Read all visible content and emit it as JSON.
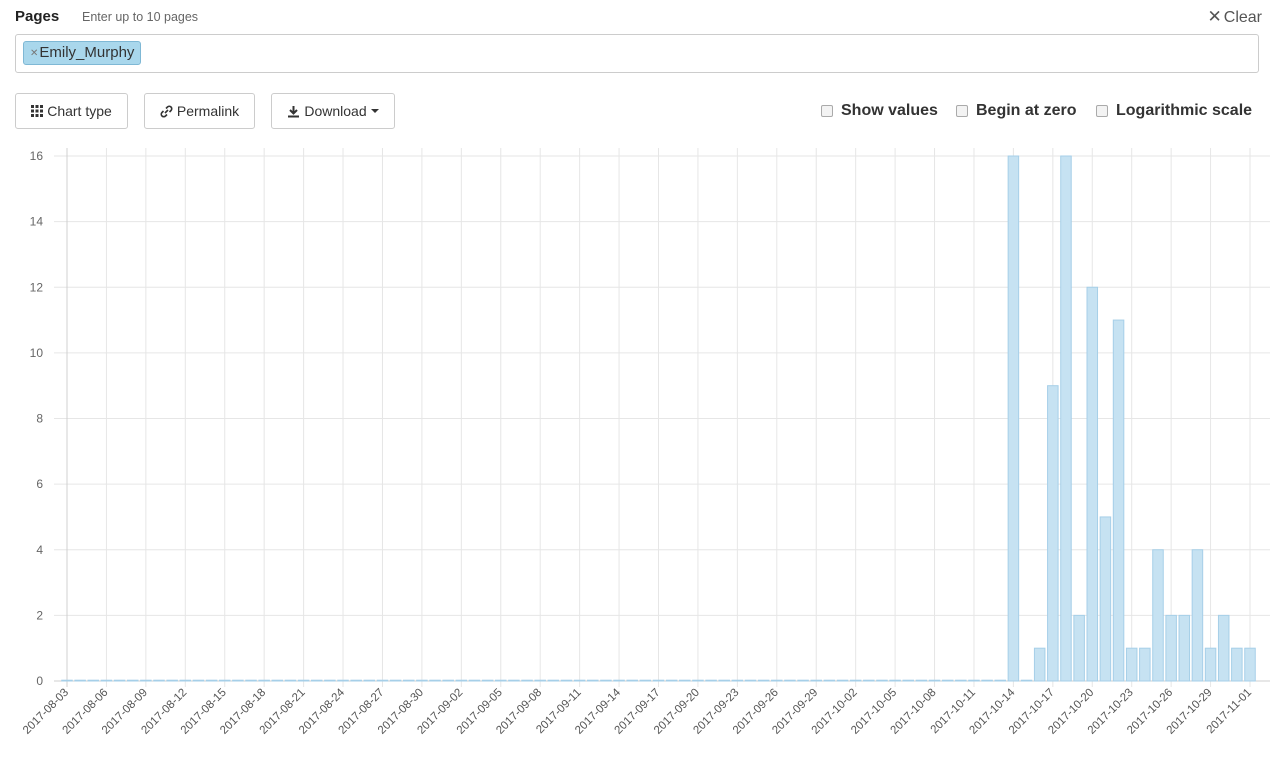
{
  "pages": {
    "label": "Pages",
    "hint": "Enter up to 10 pages",
    "clear_label": "Clear",
    "tags": [
      "Emily_Murphy"
    ]
  },
  "toolbar": {
    "chart_type_label": "Chart type",
    "permalink_label": "Permalink",
    "download_label": "Download"
  },
  "options": {
    "show_values": "Show values",
    "begin_at_zero": "Begin at zero",
    "log_scale": "Logarithmic scale"
  },
  "colors": {
    "bar_fill": "#c6e2f2",
    "bar_stroke": "#a6cfe8",
    "tag_bg": "#a9d7ec"
  },
  "chart_data": {
    "type": "bar",
    "start_date": "2017-08-03",
    "end_date": "2017-11-01",
    "x_tick_labels": [
      "2017-08-03",
      "2017-08-06",
      "2017-08-09",
      "2017-08-12",
      "2017-08-15",
      "2017-08-18",
      "2017-08-21",
      "2017-08-24",
      "2017-08-27",
      "2017-08-30",
      "2017-09-02",
      "2017-09-05",
      "2017-09-08",
      "2017-09-11",
      "2017-09-14",
      "2017-09-17",
      "2017-09-20",
      "2017-09-23",
      "2017-09-26",
      "2017-09-29",
      "2017-10-02",
      "2017-10-05",
      "2017-10-08",
      "2017-10-11",
      "2017-10-14",
      "2017-10-17",
      "2017-10-20",
      "2017-10-23",
      "2017-10-26",
      "2017-10-29",
      "2017-11-01"
    ],
    "y_ticks": [
      0,
      2,
      4,
      6,
      8,
      10,
      12,
      14,
      16
    ],
    "ylim": [
      0,
      16
    ],
    "grid": true,
    "series": [
      {
        "values": [
          0,
          0,
          0,
          0,
          0,
          0,
          0,
          0,
          0,
          0,
          0,
          0,
          0,
          0,
          0,
          0,
          0,
          0,
          0,
          0,
          0,
          0,
          0,
          0,
          0,
          0,
          0,
          0,
          0,
          0,
          0,
          0,
          0,
          0,
          0,
          0,
          0,
          0,
          0,
          0,
          0,
          0,
          0,
          0,
          0,
          0,
          0,
          0,
          0,
          0,
          0,
          0,
          0,
          0,
          0,
          0,
          0,
          0,
          0,
          0,
          0,
          0,
          0,
          0,
          0,
          0,
          0,
          0,
          0,
          0,
          0,
          0,
          16,
          0,
          1,
          9,
          16,
          2,
          12,
          5,
          11,
          1,
          1,
          4,
          2,
          2,
          4,
          1,
          2,
          1,
          1
        ]
      }
    ]
  }
}
